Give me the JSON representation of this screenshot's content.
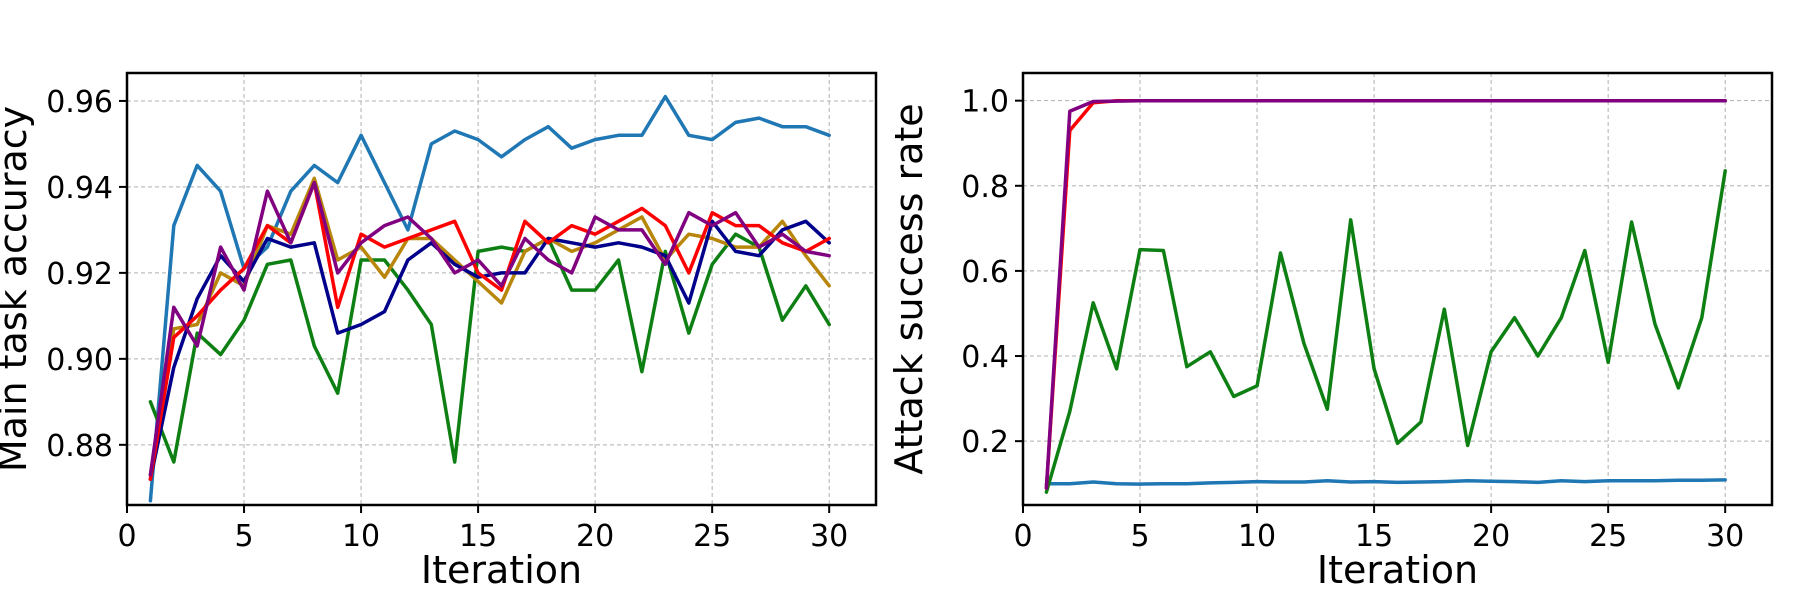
{
  "chart_data": [
    {
      "type": "line",
      "xlabel": "Iteration",
      "ylabel": "Main task accuracy",
      "xlim": [
        0,
        32
      ],
      "ylim": [
        0.866,
        0.9665
      ],
      "xticks": [
        0,
        5,
        10,
        15,
        20,
        25,
        30
      ],
      "yticks": [
        0.88,
        0.9,
        0.92,
        0.94,
        0.96
      ],
      "ytick_labels": [
        "0.88",
        "0.90",
        "0.92",
        "0.94",
        "0.96"
      ],
      "grid": true,
      "x": [
        1,
        2,
        3,
        4,
        5,
        6,
        7,
        8,
        9,
        10,
        11,
        12,
        13,
        14,
        15,
        16,
        17,
        18,
        19,
        20,
        21,
        22,
        23,
        24,
        25,
        26,
        27,
        28,
        29,
        30
      ],
      "series": [
        {
          "name": "blue",
          "color": "#1f77b4",
          "values": [
            0.867,
            0.931,
            0.945,
            0.939,
            0.921,
            0.926,
            0.939,
            0.945,
            0.941,
            0.952,
            0.941,
            0.93,
            0.95,
            0.953,
            0.951,
            0.947,
            0.951,
            0.954,
            0.949,
            0.951,
            0.952,
            0.952,
            0.961,
            0.952,
            0.951,
            0.955,
            0.956,
            0.954,
            0.954,
            0.952
          ]
        },
        {
          "name": "green",
          "color": "#0e8013",
          "values": [
            0.89,
            0.876,
            0.906,
            0.901,
            0.909,
            0.922,
            0.923,
            0.903,
            0.892,
            0.923,
            0.923,
            0.916,
            0.908,
            0.876,
            0.925,
            0.926,
            0.925,
            0.928,
            0.916,
            0.916,
            0.923,
            0.897,
            0.925,
            0.906,
            0.922,
            0.929,
            0.926,
            0.909,
            0.917,
            0.908
          ]
        },
        {
          "name": "gold",
          "color": "#b8860b",
          "values": [
            0.873,
            0.907,
            0.908,
            0.92,
            0.917,
            0.931,
            0.929,
            0.942,
            0.923,
            0.926,
            0.919,
            0.928,
            0.928,
            0.923,
            0.918,
            0.913,
            0.925,
            0.928,
            0.925,
            0.927,
            0.93,
            0.933,
            0.923,
            0.929,
            0.928,
            0.926,
            0.926,
            0.932,
            0.924,
            0.917
          ]
        },
        {
          "name": "navy",
          "color": "#00008b",
          "values": [
            0.872,
            0.898,
            0.914,
            0.924,
            0.918,
            0.928,
            0.926,
            0.927,
            0.906,
            0.908,
            0.911,
            0.923,
            0.927,
            0.922,
            0.919,
            0.92,
            0.92,
            0.928,
            0.927,
            0.926,
            0.927,
            0.926,
            0.924,
            0.913,
            0.932,
            0.925,
            0.924,
            0.93,
            0.932,
            0.927
          ]
        },
        {
          "name": "red",
          "color": "#ff0000",
          "values": [
            0.872,
            0.905,
            0.91,
            0.916,
            0.921,
            0.931,
            0.927,
            0.941,
            0.912,
            0.929,
            0.926,
            0.928,
            0.93,
            0.932,
            0.92,
            0.916,
            0.932,
            0.927,
            0.931,
            0.929,
            0.932,
            0.935,
            0.931,
            0.92,
            0.934,
            0.931,
            0.931,
            0.927,
            0.925,
            0.928
          ]
        },
        {
          "name": "purple",
          "color": "#800080",
          "values": [
            0.873,
            0.912,
            0.903,
            0.926,
            0.916,
            0.939,
            0.927,
            0.941,
            0.92,
            0.927,
            0.931,
            0.933,
            0.928,
            0.92,
            0.923,
            0.917,
            0.928,
            0.923,
            0.92,
            0.933,
            0.93,
            0.93,
            0.922,
            0.934,
            0.931,
            0.934,
            0.926,
            0.929,
            0.925,
            0.924
          ]
        }
      ]
    },
    {
      "type": "line",
      "xlabel": "Iteration",
      "ylabel": "Attack success rate",
      "xlim": [
        0,
        32
      ],
      "ylim": [
        0.05,
        1.065
      ],
      "xticks": [
        0,
        5,
        10,
        15,
        20,
        25,
        30
      ],
      "yticks": [
        0.2,
        0.4,
        0.6,
        0.8,
        1.0
      ],
      "ytick_labels": [
        "0.2",
        "0.4",
        "0.6",
        "0.8",
        "1.0"
      ],
      "grid": true,
      "x": [
        1,
        2,
        3,
        4,
        5,
        6,
        7,
        8,
        9,
        10,
        11,
        12,
        13,
        14,
        15,
        16,
        17,
        18,
        19,
        20,
        21,
        22,
        23,
        24,
        25,
        26,
        27,
        28,
        29,
        30
      ],
      "series": [
        {
          "name": "blue",
          "color": "#1f77b4",
          "values": [
            0.1,
            0.1,
            0.104,
            0.1,
            0.099,
            0.1,
            0.1,
            0.102,
            0.103,
            0.105,
            0.104,
            0.104,
            0.107,
            0.104,
            0.105,
            0.103,
            0.104,
            0.105,
            0.107,
            0.106,
            0.105,
            0.103,
            0.107,
            0.105,
            0.107,
            0.107,
            0.107,
            0.108,
            0.108,
            0.109
          ]
        },
        {
          "name": "green",
          "color": "#0e8013",
          "values": [
            0.08,
            0.27,
            0.525,
            0.37,
            0.65,
            0.648,
            0.375,
            0.41,
            0.305,
            0.33,
            0.642,
            0.43,
            0.275,
            0.72,
            0.37,
            0.195,
            0.245,
            0.51,
            0.19,
            0.41,
            0.49,
            0.4,
            0.49,
            0.648,
            0.385,
            0.715,
            0.475,
            0.325,
            0.49,
            0.835
          ]
        },
        {
          "name": "red",
          "color": "#ff0000",
          "values": [
            0.09,
            0.93,
            0.995,
            1.0,
            1.0,
            1.0,
            1.0,
            1.0,
            1.0,
            1.0,
            1.0,
            1.0,
            1.0,
            1.0,
            1.0,
            1.0,
            1.0,
            1.0,
            1.0,
            1.0,
            1.0,
            1.0,
            1.0,
            1.0,
            1.0,
            1.0,
            1.0,
            1.0,
            1.0,
            1.0
          ]
        },
        {
          "name": "purple",
          "color": "#800080",
          "values": [
            0.09,
            0.975,
            0.998,
            0.999,
            1.0,
            1.0,
            1.0,
            1.0,
            1.0,
            1.0,
            1.0,
            1.0,
            1.0,
            1.0,
            1.0,
            1.0,
            1.0,
            1.0,
            1.0,
            1.0,
            1.0,
            1.0,
            1.0,
            1.0,
            1.0,
            1.0,
            1.0,
            1.0,
            1.0,
            1.0
          ]
        }
      ]
    }
  ]
}
